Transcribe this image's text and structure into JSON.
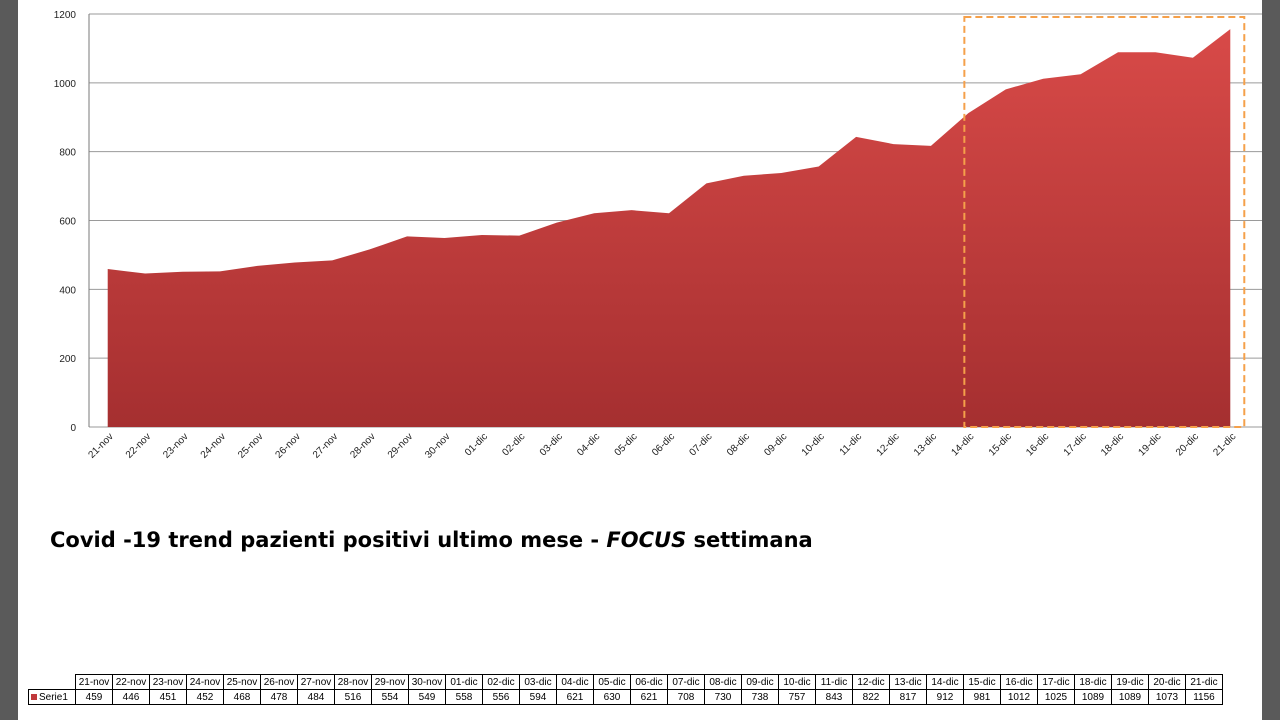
{
  "chart_data": {
    "type": "area",
    "title": "Covid -19 trend pazienti positivi ultimo mese - FOCUS settimana",
    "title_parts": {
      "before": "Covid -19 trend pazienti positivi ultimo mese - ",
      "focus": "FOCUS",
      "after": " settimana"
    },
    "categories": [
      "21-nov",
      "22-nov",
      "23-nov",
      "24-nov",
      "25-nov",
      "26-nov",
      "27-nov",
      "28-nov",
      "29-nov",
      "30-nov",
      "01-dic",
      "02-dic",
      "03-dic",
      "04-dic",
      "05-dic",
      "06-dic",
      "07-dic",
      "08-dic",
      "09-dic",
      "10-dic",
      "11-dic",
      "12-dic",
      "13-dic",
      "14-dic",
      "15-dic",
      "16-dic",
      "17-dic",
      "18-dic",
      "19-dic",
      "20-dic",
      "21-dic"
    ],
    "series": [
      {
        "name": "Serie1",
        "color": "#c0393b",
        "values": [
          459,
          446,
          451,
          452,
          468,
          478,
          484,
          516,
          554,
          549,
          558,
          556,
          594,
          621,
          630,
          621,
          708,
          730,
          738,
          757,
          843,
          822,
          817,
          912,
          981,
          1012,
          1025,
          1089,
          1089,
          1073,
          1156
        ]
      }
    ],
    "ylim": [
      0,
      1200
    ],
    "yticks": [
      0,
      200,
      400,
      600,
      800,
      1000,
      1200
    ],
    "grid": true,
    "highlight": {
      "from": "14-dic",
      "to": "21-dic",
      "color": "#f5a04a",
      "style": "dashed"
    },
    "xlabel": "",
    "ylabel": ""
  }
}
